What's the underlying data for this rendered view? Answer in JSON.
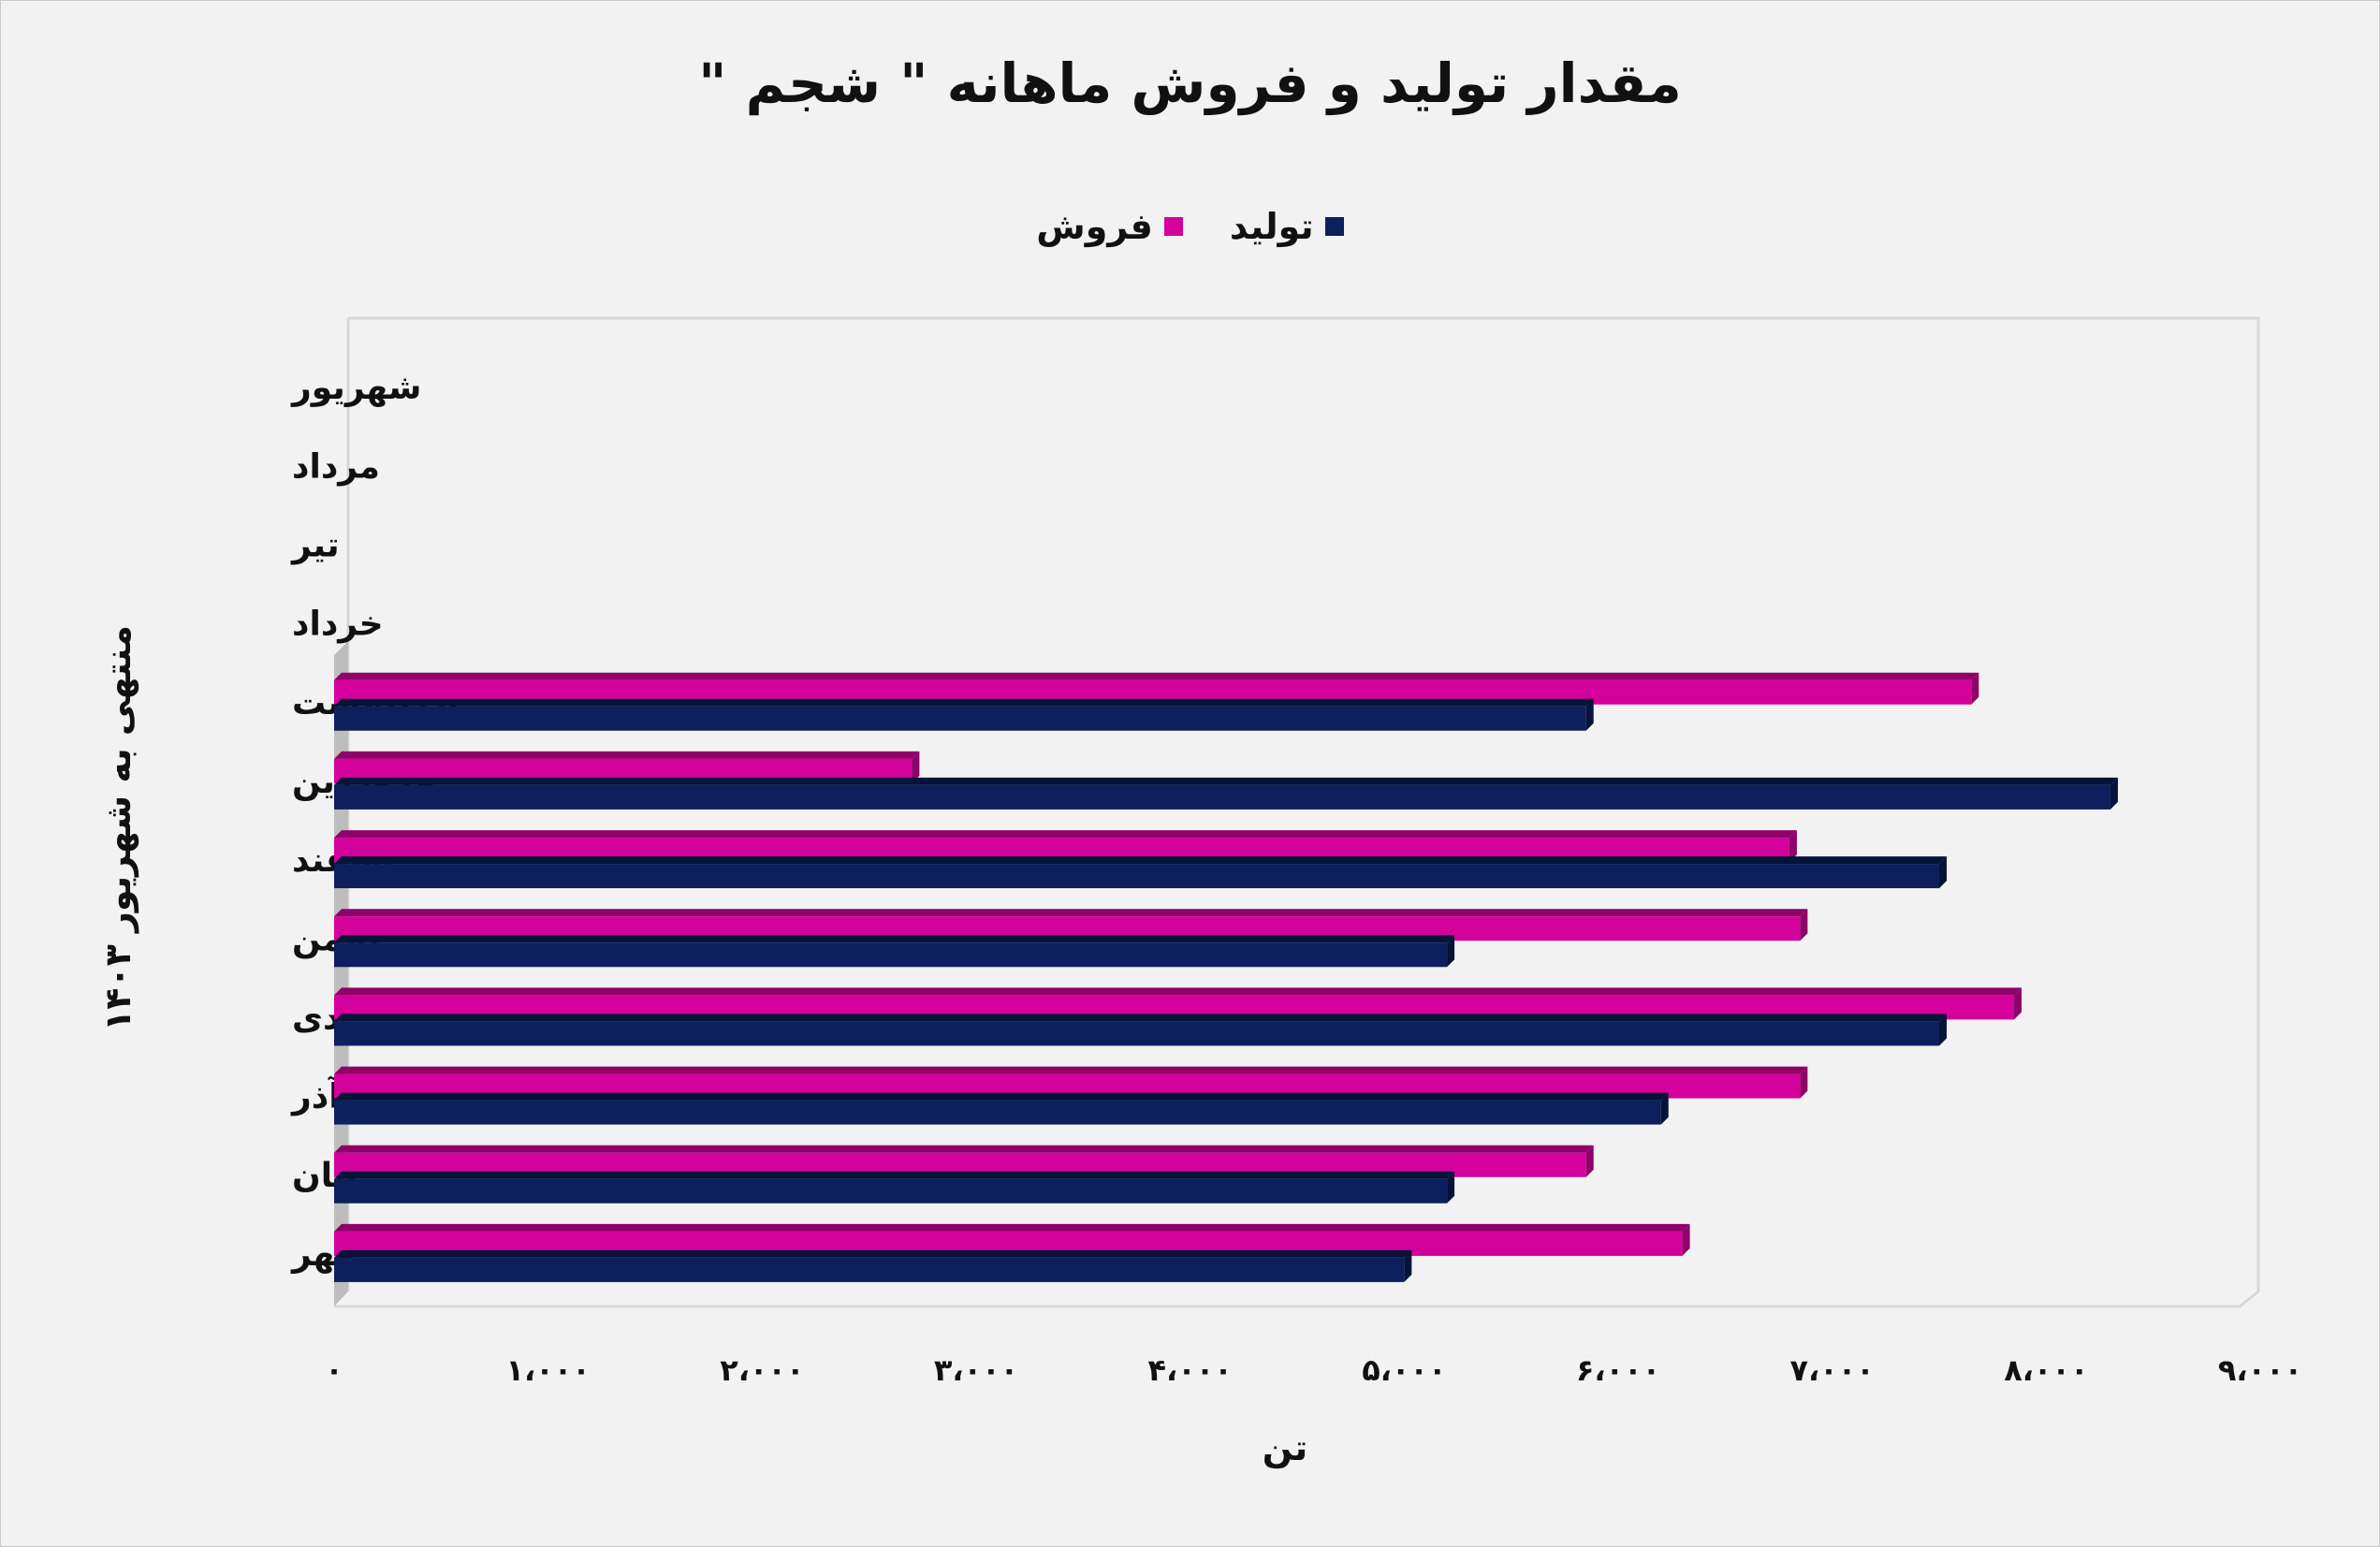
{
  "chart_data": {
    "type": "bar",
    "orientation": "horizontal",
    "title": "مقدار تولید و فروش ماهانه \" شجم \"",
    "xlabel": "تن",
    "ylabel": "منتهی به شهریور ۱۴۰۳",
    "xlim": [
      0,
      9000
    ],
    "xticks": [
      0,
      1000,
      2000,
      3000,
      4000,
      5000,
      6000,
      7000,
      8000,
      9000
    ],
    "xtick_labels": [
      "۰",
      "۱،۰۰۰",
      "۲،۰۰۰",
      "۳،۰۰۰",
      "۴،۰۰۰",
      "۵،۰۰۰",
      "۶،۰۰۰",
      "۷،۰۰۰",
      "۸،۰۰۰",
      "۹،۰۰۰"
    ],
    "categories": [
      "مهر",
      "آبان",
      "آذر",
      "دی",
      "بهمن",
      "اسفند",
      "فروردین",
      "اردیبهشت",
      "خرداد",
      "تیر",
      "مرداد",
      "شهریور"
    ],
    "series": [
      {
        "name": "تولید",
        "color": "#0d1f5c",
        "values": [
          5000,
          5200,
          6200,
          7500,
          5200,
          7500,
          8300,
          5850,
          null,
          null,
          null,
          null
        ]
      },
      {
        "name": "فروش",
        "color": "#d4009b",
        "values": [
          6300,
          5850,
          6850,
          7850,
          6850,
          6800,
          2700,
          7650,
          null,
          null,
          null,
          null
        ]
      }
    ],
    "legend_position": "top",
    "grid": false
  }
}
